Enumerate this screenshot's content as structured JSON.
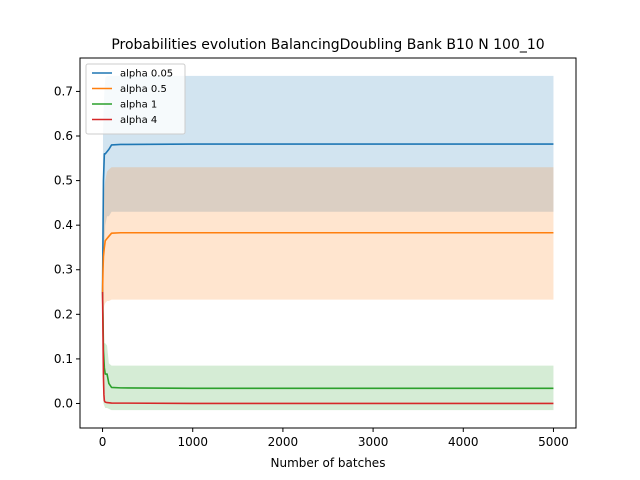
{
  "chart_data": {
    "type": "line",
    "title": "Probabilities evolution BalancingDoubling Bank B10 N 100_10",
    "xlabel": "Number of batches",
    "ylabel": "",
    "xlim": [
      -250,
      5250
    ],
    "ylim": [
      -0.055,
      0.775
    ],
    "xticks": [
      0,
      1000,
      2000,
      3000,
      4000,
      5000
    ],
    "yticks": [
      0.0,
      0.1,
      0.2,
      0.3,
      0.4,
      0.5,
      0.6,
      0.7
    ],
    "legend_position": "top-left",
    "series": [
      {
        "name": "alpha 0.05",
        "color": "#1f77b4",
        "x": [
          0,
          5,
          10,
          20,
          30,
          50,
          70,
          100,
          200,
          1000,
          5000
        ],
        "y": [
          0.25,
          0.38,
          0.5,
          0.56,
          0.56,
          0.565,
          0.57,
          0.58,
          0.581,
          0.582,
          0.582
        ],
        "band_lower": [
          0.25,
          0.2,
          0.3,
          0.35,
          0.4,
          0.42,
          0.42,
          0.43,
          0.43,
          0.43,
          0.43
        ],
        "band_upper": [
          0.25,
          0.6,
          0.65,
          0.7,
          0.73,
          0.735,
          0.735,
          0.735,
          0.735,
          0.735,
          0.735
        ]
      },
      {
        "name": "alpha 0.5",
        "color": "#ff7f0e",
        "x": [
          0,
          5,
          10,
          20,
          30,
          50,
          70,
          100,
          200,
          1000,
          5000
        ],
        "y": [
          0.25,
          0.3,
          0.33,
          0.35,
          0.365,
          0.37,
          0.375,
          0.382,
          0.383,
          0.383,
          0.383
        ],
        "band_lower": [
          0.25,
          0.2,
          0.21,
          0.22,
          0.225,
          0.23,
          0.23,
          0.233,
          0.233,
          0.233,
          0.233
        ],
        "band_upper": [
          0.25,
          0.41,
          0.45,
          0.48,
          0.5,
          0.52,
          0.525,
          0.53,
          0.53,
          0.53,
          0.53
        ]
      },
      {
        "name": "alpha 1",
        "color": "#2ca02c",
        "x": [
          0,
          5,
          10,
          20,
          30,
          50,
          70,
          100,
          200,
          1000,
          5000
        ],
        "y": [
          0.25,
          0.2,
          0.12,
          0.08,
          0.066,
          0.066,
          0.045,
          0.036,
          0.035,
          0.034,
          0.034
        ],
        "band_lower": [
          0.25,
          0.05,
          0.0,
          -0.005,
          -0.01,
          -0.01,
          -0.012,
          -0.015,
          -0.015,
          -0.015,
          -0.015
        ],
        "band_upper": [
          0.25,
          0.2,
          0.14,
          0.135,
          0.135,
          0.13,
          0.09,
          0.085,
          0.085,
          0.085,
          0.085
        ]
      },
      {
        "name": "alpha 4",
        "color": "#d62728",
        "x": [
          0,
          5,
          10,
          15,
          20,
          30,
          50,
          100,
          1000,
          5000
        ],
        "y": [
          0.25,
          0.15,
          0.06,
          0.02,
          0.006,
          0.003,
          0.002,
          0.001,
          0.0,
          0.0
        ],
        "band_lower": [
          0.25,
          0.15,
          0.06,
          0.02,
          0.006,
          0.003,
          0.002,
          0.001,
          0.0,
          0.0
        ],
        "band_upper": [
          0.25,
          0.15,
          0.06,
          0.02,
          0.006,
          0.003,
          0.002,
          0.001,
          0.0,
          0.0
        ]
      }
    ]
  }
}
